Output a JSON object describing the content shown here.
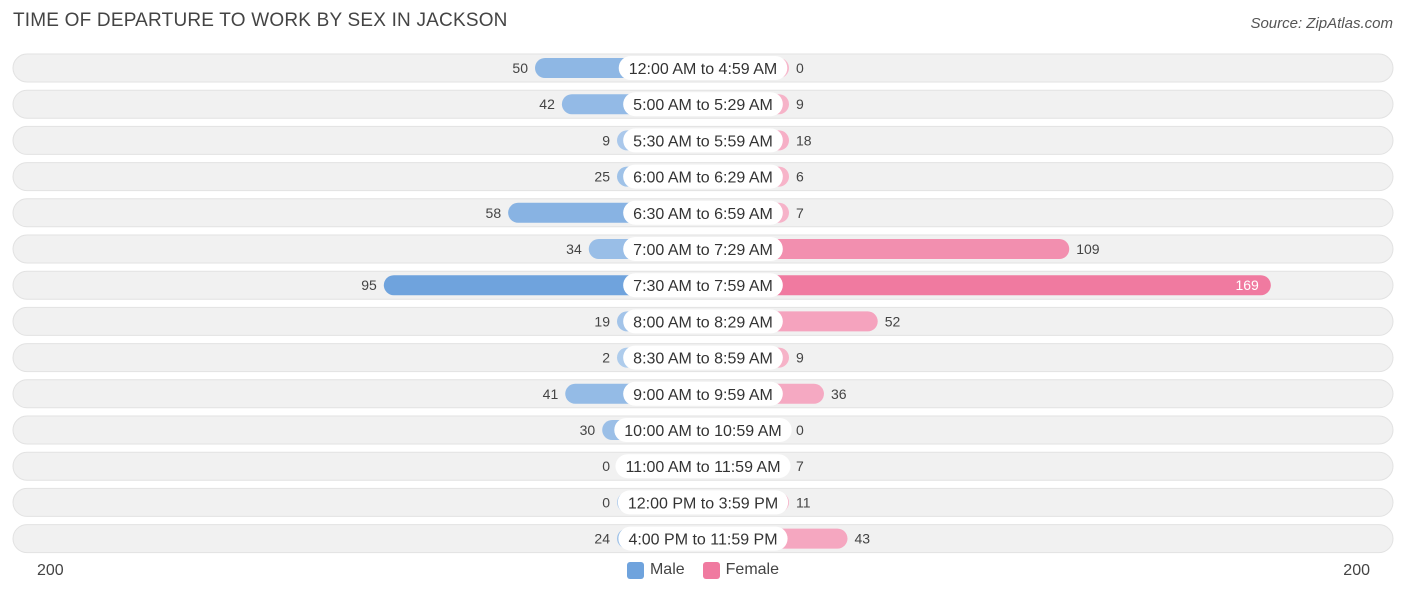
{
  "title": "TIME OF DEPARTURE TO WORK BY SEX IN JACKSON",
  "source": "Source: ZipAtlas.com",
  "axis": {
    "min_label": "200",
    "max_label": "200"
  },
  "legend": {
    "male_label": "Male",
    "female_label": "Female",
    "male_color": "#6fa3dd",
    "female_color": "#f07aa0"
  },
  "chart_data": {
    "type": "bar",
    "orientation": "horizontal-diverging",
    "title": "TIME OF DEPARTURE TO WORK BY SEX IN JACKSON",
    "xlim": [
      -200,
      200
    ],
    "categories": [
      "12:00 AM to 4:59 AM",
      "5:00 AM to 5:29 AM",
      "5:30 AM to 5:59 AM",
      "6:00 AM to 6:29 AM",
      "6:30 AM to 6:59 AM",
      "7:00 AM to 7:29 AM",
      "7:30 AM to 7:59 AM",
      "8:00 AM to 8:29 AM",
      "8:30 AM to 8:59 AM",
      "9:00 AM to 9:59 AM",
      "10:00 AM to 10:59 AM",
      "11:00 AM to 11:59 AM",
      "12:00 PM to 3:59 PM",
      "4:00 PM to 11:59 PM"
    ],
    "series": [
      {
        "name": "Male",
        "color": "#6fa3dd",
        "values": [
          50,
          42,
          9,
          25,
          58,
          34,
          95,
          19,
          2,
          41,
          30,
          0,
          0,
          24
        ]
      },
      {
        "name": "Female",
        "color": "#f07aa0",
        "values": [
          0,
          9,
          18,
          6,
          7,
          109,
          169,
          52,
          9,
          36,
          0,
          7,
          11,
          43
        ]
      }
    ],
    "legend_position": "bottom-center",
    "grid": false
  }
}
